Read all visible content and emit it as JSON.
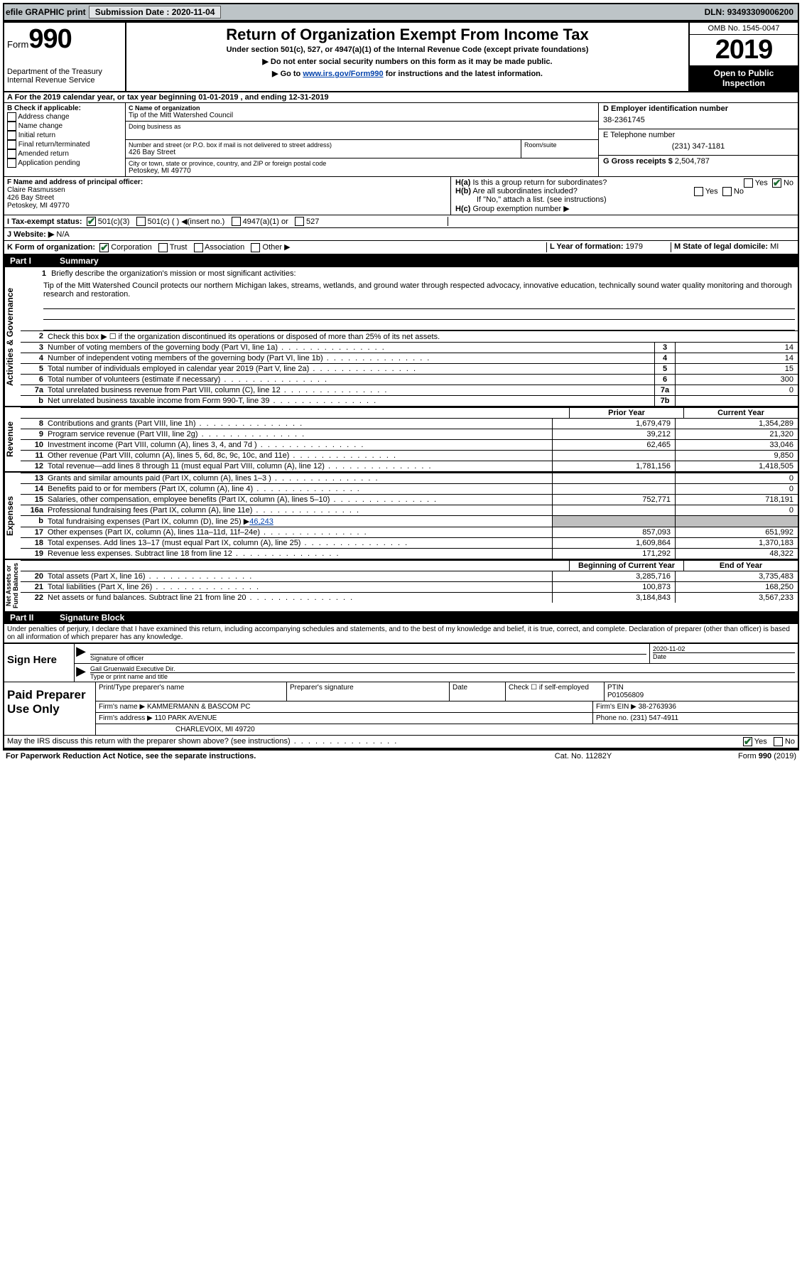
{
  "top": {
    "efile": "efile GRAPHIC print",
    "sub_label": "Submission Date : ",
    "sub_date": "2020-11-04",
    "dln_label": "DLN: ",
    "dln": "93493309006200"
  },
  "header": {
    "form_word": "Form",
    "num990": "990",
    "dept": "Department of the Treasury\nInternal Revenue Service",
    "title": "Return of Organization Exempt From Income Tax",
    "sub1": "Under section 501(c), 527, or 4947(a)(1) of the Internal Revenue Code (except private foundations)",
    "sub2_arrow": "▶ Do not enter social security numbers on this form as it may be made public.",
    "sub3_pre": "▶ Go to ",
    "sub3_link": "www.irs.gov/Form990",
    "sub3_post": " for instructions and the latest information.",
    "omb": "OMB No. 1545-0047",
    "year": "2019",
    "inspection1": "Open to Public",
    "inspection2": "Inspection"
  },
  "lineA": "A   For the 2019 calendar year, or tax year beginning 01-01-2019    , and ending 12-31-2019",
  "boxB": {
    "title": "B Check if applicable:",
    "opts": [
      "Address change",
      "Name change",
      "Initial return",
      "Final return/terminated",
      "Amended return",
      "Application pending"
    ]
  },
  "boxC": {
    "label": "C Name of organization",
    "name": "Tip of the Mitt Watershed Council",
    "dba": "Doing business as",
    "street_label": "Number and street (or P.O. box if mail is not delivered to street address)",
    "street": "426 Bay Street",
    "room_label": "Room/suite",
    "city_label": "City or town, state or province, country, and ZIP or foreign postal code",
    "city": "Petoskey, MI  49770"
  },
  "boxD": {
    "label": "D Employer identification number",
    "ein": "38-2361745"
  },
  "boxE": {
    "label": "E Telephone number",
    "phone": "(231) 347-1181"
  },
  "boxG": {
    "label": "G Gross receipts $ ",
    "val": "2,504,787"
  },
  "boxF": {
    "label": "F  Name and address of principal officer:",
    "name": "Claire Rasmussen",
    "street": "426 Bay Street",
    "city": "Petoskey, MI  49770"
  },
  "boxH": {
    "a_label": "H(a)",
    "a_text": "Is this a group return for subordinates?",
    "b_label": "H(b)",
    "b_text": "Are all subordinates included?",
    "b_note": "If \"No,\" attach a list. (see instructions)",
    "c_label": "H(c)",
    "c_text": "Group exemption number ▶",
    "yes": "Yes",
    "no": "No"
  },
  "boxI": {
    "label": "I   Tax-exempt status:",
    "opts": [
      "501(c)(3)",
      "501(c) (  ) ◀(insert no.)",
      "4947(a)(1) or",
      "527"
    ]
  },
  "boxJ": {
    "label": "J   Website: ▶",
    "val": "N/A"
  },
  "boxK": {
    "label": "K Form of organization:",
    "opts": [
      "Corporation",
      "Trust",
      "Association",
      "Other ▶"
    ]
  },
  "boxL": {
    "label": "L Year of formation: ",
    "val": "1979"
  },
  "boxM": {
    "label": "M State of legal domicile: ",
    "val": "MI"
  },
  "partI": {
    "label": "Part I",
    "title": "Summary"
  },
  "summary": {
    "q1_label": "1",
    "q1_text": "Briefly describe the organization's mission or most significant activities:",
    "q1_mission": "Tip of the Mitt Watershed Council protects our northern Michigan lakes, streams, wetlands, and ground water through respected advocacy, innovative education, technically sound water quality monitoring and thorough research and restoration.",
    "q2_text": "Check this box ▶ ☐  if the organization discontinued its operations or disposed of more than 25% of its net assets.",
    "lines_small": [
      {
        "n": "3",
        "t": "Number of voting members of the governing body (Part VI, line 1a)",
        "box": "3",
        "v": "14"
      },
      {
        "n": "4",
        "t": "Number of independent voting members of the governing body (Part VI, line 1b)",
        "box": "4",
        "v": "14"
      },
      {
        "n": "5",
        "t": "Total number of individuals employed in calendar year 2019 (Part V, line 2a)",
        "box": "5",
        "v": "15"
      },
      {
        "n": "6",
        "t": "Total number of volunteers (estimate if necessary)",
        "box": "6",
        "v": "300"
      },
      {
        "n": "7a",
        "t": "Total unrelated business revenue from Part VIII, column (C), line 12",
        "box": "7a",
        "v": "0"
      },
      {
        "n": "b",
        "t": "Net unrelated business taxable income from Form 990-T, line 39",
        "box": "7b",
        "v": ""
      }
    ],
    "col_prior": "Prior Year",
    "col_current": "Current Year",
    "revenue": [
      {
        "n": "8",
        "t": "Contributions and grants (Part VIII, line 1h)",
        "p": "1,679,479",
        "c": "1,354,289"
      },
      {
        "n": "9",
        "t": "Program service revenue (Part VIII, line 2g)",
        "p": "39,212",
        "c": "21,320"
      },
      {
        "n": "10",
        "t": "Investment income (Part VIII, column (A), lines 3, 4, and 7d )",
        "p": "62,465",
        "c": "33,046"
      },
      {
        "n": "11",
        "t": "Other revenue (Part VIII, column (A), lines 5, 6d, 8c, 9c, 10c, and 11e)",
        "p": "",
        "c": "9,850"
      },
      {
        "n": "12",
        "t": "Total revenue—add lines 8 through 11 (must equal Part VIII, column (A), line 12)",
        "p": "1,781,156",
        "c": "1,418,505"
      }
    ],
    "expenses": [
      {
        "n": "13",
        "t": "Grants and similar amounts paid (Part IX, column (A), lines 1–3 )",
        "p": "",
        "c": "0"
      },
      {
        "n": "14",
        "t": "Benefits paid to or for members (Part IX, column (A), line 4)",
        "p": "",
        "c": "0"
      },
      {
        "n": "15",
        "t": "Salaries, other compensation, employee benefits (Part IX, column (A), lines 5–10)",
        "p": "752,771",
        "c": "718,191"
      },
      {
        "n": "16a",
        "t": "Professional fundraising fees (Part IX, column (A), line 11e)",
        "p": "",
        "c": "0"
      }
    ],
    "line16b": {
      "n": "b",
      "t": "Total fundraising expenses (Part IX, column (D), line 25) ▶",
      "link": "46,243"
    },
    "expenses2": [
      {
        "n": "17",
        "t": "Other expenses (Part IX, column (A), lines 11a–11d, 11f–24e)",
        "p": "857,093",
        "c": "651,992"
      },
      {
        "n": "18",
        "t": "Total expenses. Add lines 13–17 (must equal Part IX, column (A), line 25)",
        "p": "1,609,864",
        "c": "1,370,183"
      },
      {
        "n": "19",
        "t": "Revenue less expenses. Subtract line 18 from line 12",
        "p": "171,292",
        "c": "48,322"
      }
    ],
    "col_begin": "Beginning of Current Year",
    "col_end": "End of Year",
    "netassets": [
      {
        "n": "20",
        "t": "Total assets (Part X, line 16)",
        "p": "3,285,716",
        "c": "3,735,483"
      },
      {
        "n": "21",
        "t": "Total liabilities (Part X, line 26)",
        "p": "100,873",
        "c": "168,250"
      },
      {
        "n": "22",
        "t": "Net assets or fund balances. Subtract line 21 from line 20",
        "p": "3,184,843",
        "c": "3,567,233"
      }
    ],
    "tab_gov": "Activities & Governance",
    "tab_rev": "Revenue",
    "tab_exp": "Expenses",
    "tab_net": "Net Assets or\nFund Balances"
  },
  "partII": {
    "label": "Part II",
    "title": "Signature Block"
  },
  "sig": {
    "penalties": "Under penalties of perjury, I declare that I have examined this return, including accompanying schedules and statements, and to the best of my knowledge and belief, it is true, correct, and complete. Declaration of preparer (other than officer) is based on all information of which preparer has any knowledge.",
    "sign_here": "Sign Here",
    "sig_officer": "Signature of officer",
    "date_label": "Date",
    "date": "2020-11-02",
    "name_title": "Gail Gruenwald  Executive Dir.",
    "type_label": "Type or print name and title"
  },
  "prep": {
    "title": "Paid Preparer Use Only",
    "print_label": "Print/Type preparer's name",
    "sig_label": "Preparer's signature",
    "date_label": "Date",
    "check_label": "Check ☐ if self-employed",
    "ptin_label": "PTIN",
    "ptin": "P01056809",
    "firm_name_label": "Firm's name    ▶",
    "firm_name": "KAMMERMANN & BASCOM PC",
    "firm_ein_label": "Firm's EIN ▶",
    "firm_ein": "38-2763936",
    "firm_addr_label": "Firm's address ▶",
    "firm_addr1": "110 PARK AVENUE",
    "firm_addr2": "CHARLEVOIX, MI  49720",
    "phone_label": "Phone no. ",
    "phone": "(231) 547-4911",
    "discuss": "May the IRS discuss this return with the preparer shown above? (see instructions)"
  },
  "footer": {
    "left": "For Paperwork Reduction Act Notice, see the separate instructions.",
    "mid": "Cat. No. 11282Y",
    "right_pre": "Form ",
    "right_b": "990",
    "right_post": " (2019)"
  }
}
